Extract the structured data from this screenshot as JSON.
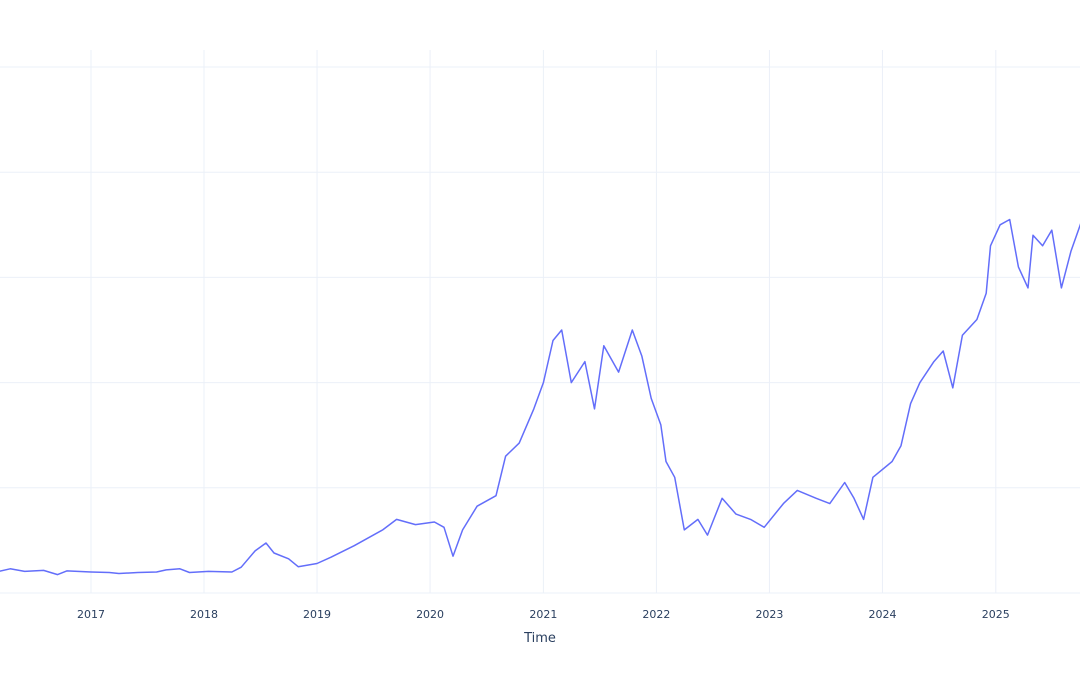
{
  "chart_data": {
    "type": "line",
    "xlabel": "Time",
    "ylabel": "",
    "title": "",
    "x_ticks": [
      "2017",
      "2018",
      "2019",
      "2020",
      "2021",
      "2022",
      "2023",
      "2024",
      "2025"
    ],
    "grid": true,
    "legend": "none",
    "line_color": "#636efa",
    "grid_color": "#ebf0f8",
    "axis_text_color": "#2a3f5f",
    "series": [
      {
        "values": [
          [
            "2016-03-01",
            4.0
          ],
          [
            "2016-04-15",
            4.6
          ],
          [
            "2016-06-01",
            4.1
          ],
          [
            "2016-08-01",
            4.3
          ],
          [
            "2016-09-15",
            3.5
          ],
          [
            "2016-10-15",
            4.2
          ],
          [
            "2017-01-01",
            4.0
          ],
          [
            "2017-03-01",
            3.9
          ],
          [
            "2017-04-01",
            3.7
          ],
          [
            "2017-06-01",
            3.9
          ],
          [
            "2017-08-01",
            4.0
          ],
          [
            "2017-09-01",
            4.4
          ],
          [
            "2017-10-15",
            4.6
          ],
          [
            "2017-11-15",
            3.9
          ],
          [
            "2018-01-15",
            4.1
          ],
          [
            "2018-04-01",
            4.0
          ],
          [
            "2018-05-01",
            4.9
          ],
          [
            "2018-06-15",
            8.0
          ],
          [
            "2018-07-20",
            9.5
          ],
          [
            "2018-08-15",
            7.6
          ],
          [
            "2018-10-01",
            6.5
          ],
          [
            "2018-11-01",
            5.0
          ],
          [
            "2019-01-01",
            5.6
          ],
          [
            "2019-02-15",
            6.8
          ],
          [
            "2019-05-01",
            9.0
          ],
          [
            "2019-08-01",
            12.0
          ],
          [
            "2019-09-15",
            14.0
          ],
          [
            "2019-11-15",
            13.0
          ],
          [
            "2020-01-15",
            13.5
          ],
          [
            "2020-02-15",
            12.5
          ],
          [
            "2020-03-15",
            7.0
          ],
          [
            "2020-04-15",
            12.0
          ],
          [
            "2020-06-01",
            16.5
          ],
          [
            "2020-08-01",
            18.5
          ],
          [
            "2020-09-01",
            26.0
          ],
          [
            "2020-10-15",
            28.5
          ],
          [
            "2020-12-01",
            35.0
          ],
          [
            "2021-01-01",
            40.0
          ],
          [
            "2021-02-01",
            48.0
          ],
          [
            "2021-03-01",
            50.0
          ],
          [
            "2021-04-01",
            40.0
          ],
          [
            "2021-05-15",
            44.0
          ],
          [
            "2021-06-15",
            35.0
          ],
          [
            "2021-07-15",
            47.0
          ],
          [
            "2021-09-01",
            42.0
          ],
          [
            "2021-10-15",
            50.0
          ],
          [
            "2021-11-15",
            45.0
          ],
          [
            "2021-12-15",
            37.0
          ],
          [
            "2022-01-15",
            32.0
          ],
          [
            "2022-02-01",
            25.0
          ],
          [
            "2022-03-01",
            22.0
          ],
          [
            "2022-04-01",
            12.0
          ],
          [
            "2022-05-15",
            14.0
          ],
          [
            "2022-06-15",
            11.0
          ],
          [
            "2022-08-01",
            18.0
          ],
          [
            "2022-09-15",
            15.0
          ],
          [
            "2022-11-01",
            14.0
          ],
          [
            "2022-12-15",
            12.5
          ],
          [
            "2023-02-15",
            17.0
          ],
          [
            "2023-04-01",
            19.5
          ],
          [
            "2023-06-01",
            18.0
          ],
          [
            "2023-07-15",
            17.0
          ],
          [
            "2023-09-01",
            21.0
          ],
          [
            "2023-10-01",
            18.0
          ],
          [
            "2023-11-01",
            14.0
          ],
          [
            "2023-12-01",
            22.0
          ],
          [
            "2024-02-01",
            25.0
          ],
          [
            "2024-03-01",
            28.0
          ],
          [
            "2024-04-01",
            36.0
          ],
          [
            "2024-05-01",
            40.0
          ],
          [
            "2024-06-15",
            44.0
          ],
          [
            "2024-07-15",
            46.0
          ],
          [
            "2024-08-15",
            39.0
          ],
          [
            "2024-09-15",
            49.0
          ],
          [
            "2024-11-01",
            52.0
          ],
          [
            "2024-12-01",
            57.0
          ],
          [
            "2024-12-15",
            66.0
          ],
          [
            "2025-01-15",
            70.0
          ],
          [
            "2025-02-15",
            71.0
          ],
          [
            "2025-03-15",
            62.0
          ],
          [
            "2025-04-15",
            58.0
          ],
          [
            "2025-05-01",
            68.0
          ],
          [
            "2025-06-01",
            66.0
          ],
          [
            "2025-07-01",
            69.0
          ],
          [
            "2025-08-01",
            58.0
          ],
          [
            "2025-09-01",
            65.0
          ],
          [
            "2025-10-01",
            70.0
          ],
          [
            "2025-10-15",
            73.0
          ],
          [
            "2025-11-01",
            66.0
          ]
        ]
      }
    ],
    "xlim": [
      "2016-02-15",
      "2025-11-01"
    ],
    "ylim": [
      0,
      100
    ]
  }
}
